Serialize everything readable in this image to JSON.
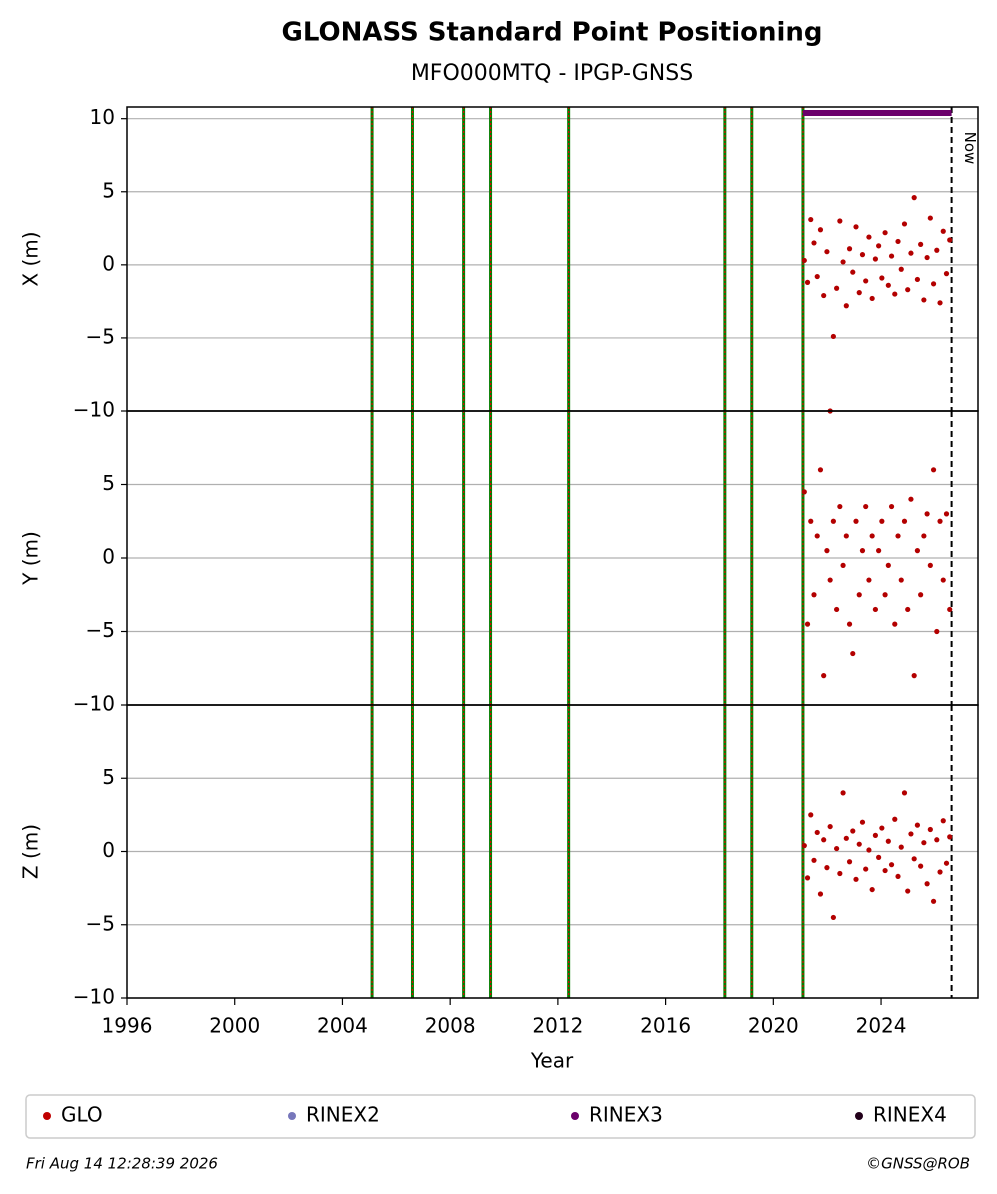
{
  "title": "GLONASS Standard Point Positioning",
  "subtitle": "MFO000MTQ - IPGP-GNSS",
  "xaxis": {
    "label": "Year",
    "xlim": [
      1996,
      2027.6
    ],
    "xticks": [
      1996,
      2000,
      2004,
      2008,
      2012,
      2016,
      2020,
      2024
    ]
  },
  "events": {
    "x": [
      2005.1,
      2006.6,
      2008.5,
      2009.5,
      2012.4,
      2018.2,
      2019.2,
      2021.1
    ],
    "color": "#008000",
    "dash_color": "#e00000"
  },
  "now": {
    "x": 2026.62,
    "label": "Now"
  },
  "rinex3_span": {
    "x": [
      2021.1,
      2026.62
    ],
    "color": "#6b006b"
  },
  "legend": [
    {
      "name": "GLO",
      "color": "#c00000"
    },
    {
      "name": "RINEX2",
      "color": "#7777bb"
    },
    {
      "name": "RINEX3",
      "color": "#6b006b"
    },
    {
      "name": "RINEX4",
      "color": "#22001a"
    }
  ],
  "footer_left": "Fri Aug 14 12:28:39 2026",
  "footer_right": "©GNSS@ROB",
  "chart_data": [
    {
      "type": "scatter",
      "ylabel": "X (m)",
      "color": "#b30000",
      "grid": true,
      "ylim": [
        -10,
        10.8
      ],
      "yticks": [
        {
          "value": -10,
          "label": "−10"
        },
        {
          "value": -5,
          "label": "−5"
        },
        0,
        5,
        10
      ],
      "x": [
        2021.15,
        2021.27,
        2021.39,
        2021.51,
        2021.63,
        2021.75,
        2021.87,
        2021.99,
        2022.11,
        2022.23,
        2022.35,
        2022.47,
        2022.59,
        2022.71,
        2022.83,
        2022.95,
        2023.07,
        2023.19,
        2023.31,
        2023.43,
        2023.55,
        2023.67,
        2023.79,
        2023.91,
        2024.03,
        2024.15,
        2024.27,
        2024.39,
        2024.51,
        2024.63,
        2024.75,
        2024.87,
        2024.99,
        2025.11,
        2025.23,
        2025.35,
        2025.47,
        2025.59,
        2025.71,
        2025.83,
        2025.95,
        2026.07,
        2026.19,
        2026.31,
        2026.43,
        2026.55
      ],
      "values": [
        0.3,
        -1.2,
        3.1,
        1.5,
        -0.8,
        2.4,
        -2.1,
        0.9,
        -10,
        -4.9,
        -1.6,
        3.0,
        0.2,
        -2.8,
        1.1,
        -0.5,
        2.6,
        -1.9,
        0.7,
        -1.1,
        1.9,
        -2.3,
        0.4,
        1.3,
        -0.9,
        2.2,
        -1.4,
        0.6,
        -2.0,
        1.6,
        -0.3,
        2.8,
        -1.7,
        0.8,
        4.6,
        -1.0,
        1.4,
        -2.4,
        0.5,
        3.2,
        -1.3,
        1.0,
        -2.6,
        2.3,
        -0.6,
        1.7
      ]
    },
    {
      "type": "scatter",
      "ylabel": "Y (m)",
      "color": "#b30000",
      "grid": true,
      "ylim": [
        -10,
        10
      ],
      "yticks": [
        {
          "value": -10,
          "label": "−10"
        },
        {
          "value": -5,
          "label": "−5"
        },
        0,
        5
      ],
      "x": [
        2021.15,
        2021.27,
        2021.39,
        2021.51,
        2021.63,
        2021.75,
        2021.87,
        2021.99,
        2022.11,
        2022.23,
        2022.35,
        2022.47,
        2022.59,
        2022.71,
        2022.83,
        2022.95,
        2023.07,
        2023.19,
        2023.31,
        2023.43,
        2023.55,
        2023.67,
        2023.79,
        2023.91,
        2024.03,
        2024.15,
        2024.27,
        2024.39,
        2024.51,
        2024.63,
        2024.75,
        2024.87,
        2024.99,
        2025.11,
        2025.23,
        2025.35,
        2025.47,
        2025.59,
        2025.71,
        2025.83,
        2025.95,
        2026.07,
        2026.19,
        2026.31,
        2026.43,
        2026.55
      ],
      "values": [
        4.5,
        -4.5,
        2.5,
        -2.5,
        1.5,
        6,
        -8,
        0.5,
        -1.5,
        2.5,
        -3.5,
        3.5,
        -0.5,
        1.5,
        -4.5,
        -6.5,
        2.5,
        -2.5,
        0.5,
        3.5,
        -1.5,
        1.5,
        -3.5,
        0.5,
        2.5,
        -2.5,
        -0.5,
        3.5,
        -4.5,
        1.5,
        -1.5,
        2.5,
        -3.5,
        4,
        -8,
        0.5,
        -2.5,
        1.5,
        3,
        -0.5,
        6,
        -5,
        2.5,
        -1.5,
        3,
        -3.5
      ]
    },
    {
      "type": "scatter",
      "ylabel": "Z (m)",
      "color": "#b30000",
      "grid": true,
      "ylim": [
        -10,
        10
      ],
      "yticks": [
        {
          "value": -10,
          "label": "−10"
        },
        {
          "value": -5,
          "label": "−5"
        },
        0,
        5
      ],
      "x": [
        2021.15,
        2021.27,
        2021.39,
        2021.51,
        2021.63,
        2021.75,
        2021.87,
        2021.99,
        2022.11,
        2022.23,
        2022.35,
        2022.47,
        2022.59,
        2022.71,
        2022.83,
        2022.95,
        2023.07,
        2023.19,
        2023.31,
        2023.43,
        2023.55,
        2023.67,
        2023.79,
        2023.91,
        2024.03,
        2024.15,
        2024.27,
        2024.39,
        2024.51,
        2024.63,
        2024.75,
        2024.87,
        2024.99,
        2025.11,
        2025.23,
        2025.35,
        2025.47,
        2025.59,
        2025.71,
        2025.83,
        2025.95,
        2026.07,
        2026.19,
        2026.31,
        2026.43,
        2026.55
      ],
      "values": [
        0.4,
        -1.8,
        2.5,
        -0.6,
        1.3,
        -2.9,
        0.8,
        -1.1,
        1.7,
        -4.5,
        0.2,
        -1.5,
        4,
        0.9,
        -0.7,
        1.4,
        -1.9,
        0.5,
        2.0,
        -1.2,
        0.1,
        -2.6,
        1.1,
        -0.4,
        1.6,
        -1.3,
        0.7,
        -0.9,
        2.2,
        -1.7,
        0.3,
        4,
        -2.7,
        1.2,
        -0.5,
        1.8,
        -1.0,
        0.6,
        -2.2,
        1.5,
        -3.4,
        0.8,
        -1.4,
        2.1,
        -0.8,
        1.0
      ]
    }
  ]
}
